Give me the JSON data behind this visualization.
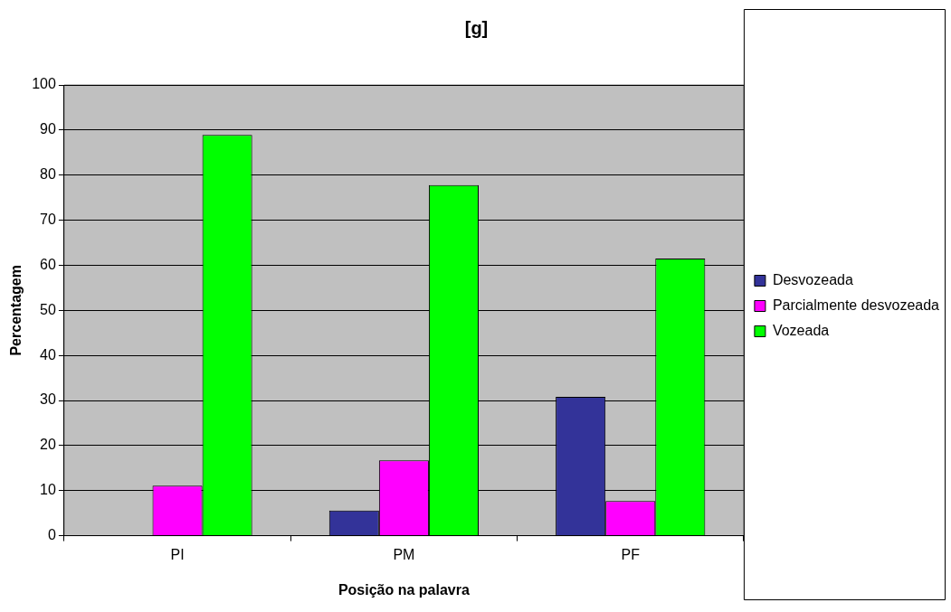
{
  "chart_data": {
    "type": "bar",
    "title": "[g]",
    "xlabel": "Posição na palavra",
    "ylabel": "Percentagem",
    "categories": [
      "PI",
      "PM",
      "PF"
    ],
    "series": [
      {
        "name": "Desvozeada",
        "color": "#333399",
        "values": [
          0,
          5.6,
          30.8
        ]
      },
      {
        "name": "Parcialmente desvozeada",
        "color": "#ff00ff",
        "values": [
          11.1,
          16.7,
          7.7
        ]
      },
      {
        "name": "Vozeada",
        "color": "#00ff00",
        "values": [
          88.9,
          77.8,
          61.5
        ]
      }
    ],
    "ylim": [
      0,
      100
    ],
    "yticks": [
      0,
      10,
      20,
      30,
      40,
      50,
      60,
      70,
      80,
      90,
      100
    ],
    "grid": "y",
    "legend": "right"
  }
}
